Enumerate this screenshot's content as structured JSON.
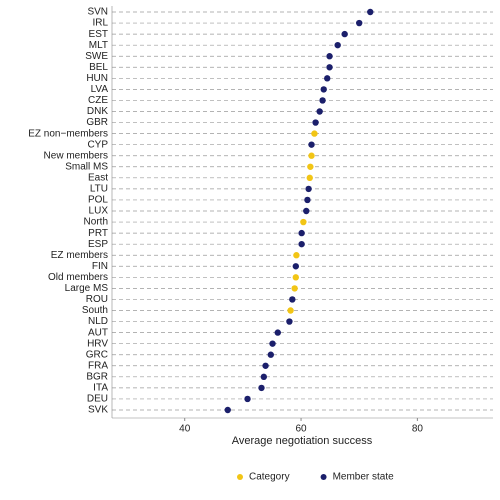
{
  "chart_data": {
    "type": "dot",
    "x_label": "Average negotiation success",
    "categories": [
      "SVN",
      "IRL",
      "EST",
      "MLT",
      "SWE",
      "BEL",
      "HUN",
      "LVA",
      "CZE",
      "DNK",
      "GBR",
      "EZ non−members",
      "CYP",
      "New members",
      "Small MS",
      "East",
      "LTU",
      "POL",
      "LUX",
      "North",
      "PRT",
      "ESP",
      "EZ members",
      "FIN",
      "Old members",
      "Large MS",
      "ROU",
      "South",
      "NLD",
      "AUT",
      "HRV",
      "GRC",
      "FRA",
      "BGR",
      "ITA",
      "DEU",
      "SVK"
    ],
    "series": [
      {
        "name": "Category",
        "color": "#f2c515",
        "values": [
          null,
          null,
          null,
          null,
          null,
          null,
          null,
          null,
          null,
          null,
          null,
          62.3,
          null,
          61.8,
          61.6,
          61.5,
          null,
          null,
          null,
          60.4,
          null,
          null,
          59.2,
          null,
          59.1,
          58.9,
          null,
          58.2,
          null,
          null,
          null,
          null,
          null,
          null,
          null,
          null,
          null
        ]
      },
      {
        "name": "Member state",
        "color": "#1b1f6b",
        "values": [
          71.9,
          70.0,
          67.5,
          66.3,
          64.9,
          64.9,
          64.5,
          63.9,
          63.7,
          63.2,
          62.5,
          null,
          61.8,
          null,
          null,
          null,
          61.3,
          61.1,
          60.9,
          null,
          60.1,
          60.1,
          null,
          59.1,
          null,
          null,
          58.5,
          null,
          58.0,
          56.0,
          55.1,
          54.8,
          53.9,
          53.6,
          53.2,
          50.8,
          47.4
        ]
      }
    ],
    "xlim": [
      27.5,
      93
    ],
    "xticks": [
      40,
      60,
      80
    ],
    "legend": "bottom"
  }
}
